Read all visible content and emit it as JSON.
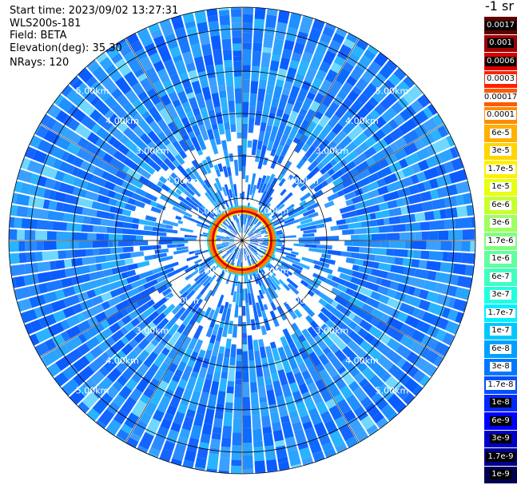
{
  "info": {
    "start_time": "Start time: 2023/09/02 13:27:31",
    "instrument": "WLS200s-181",
    "field": "Field: BETA",
    "elevation": "Elevation(deg): 35.30",
    "nrays": "NRays: 120"
  },
  "units_label": "-1 sr",
  "colorbar": {
    "labels": [
      "0.0017",
      "0.001",
      "0.0006",
      "0.0003",
      "0.00017",
      "0.0001",
      "6e-5",
      "3e-5",
      "1.7e-5",
      "1e-5",
      "6e-6",
      "3e-6",
      "1.7e-6",
      "1e-6",
      "6e-7",
      "3e-7",
      "1.7e-7",
      "1e-7",
      "6e-8",
      "3e-8",
      "1.7e-8",
      "1e-8",
      "6e-9",
      "3e-9",
      "1.7e-9",
      "1e-9"
    ],
    "colors": [
      "#600000",
      "#a00000",
      "#dd0000",
      "#ff2000",
      "#ff5a00",
      "#ff8a00",
      "#ffb000",
      "#ffd400",
      "#fff000",
      "#e8ff10",
      "#c8ff30",
      "#a0ff60",
      "#80ff80",
      "#60ffa0",
      "#40ffc0",
      "#20ffe0",
      "#00f0ff",
      "#00c8ff",
      "#00a0ff",
      "#0078ff",
      "#0050ff",
      "#0028ff",
      "#0000ff",
      "#0000c8",
      "#000090",
      "#000050"
    ]
  },
  "chart_data": {
    "type": "polar-ppi",
    "field": "BETA",
    "rays": 120,
    "range_unit": "km",
    "range_rings_km": [
      1,
      2,
      3,
      4,
      5
    ],
    "range_ring_labels": [
      "1.00km",
      "2.00km",
      "3.00km",
      "4.00km",
      "5.00km"
    ],
    "background_level": "1e-8 to 1e-7",
    "near_field_ring_range_km": [
      0.5,
      0.9
    ],
    "near_field_ring_level": "1e-4 to 1e-3",
    "colorscale_min": "1e-9",
    "colorscale_max": "0.0017"
  }
}
